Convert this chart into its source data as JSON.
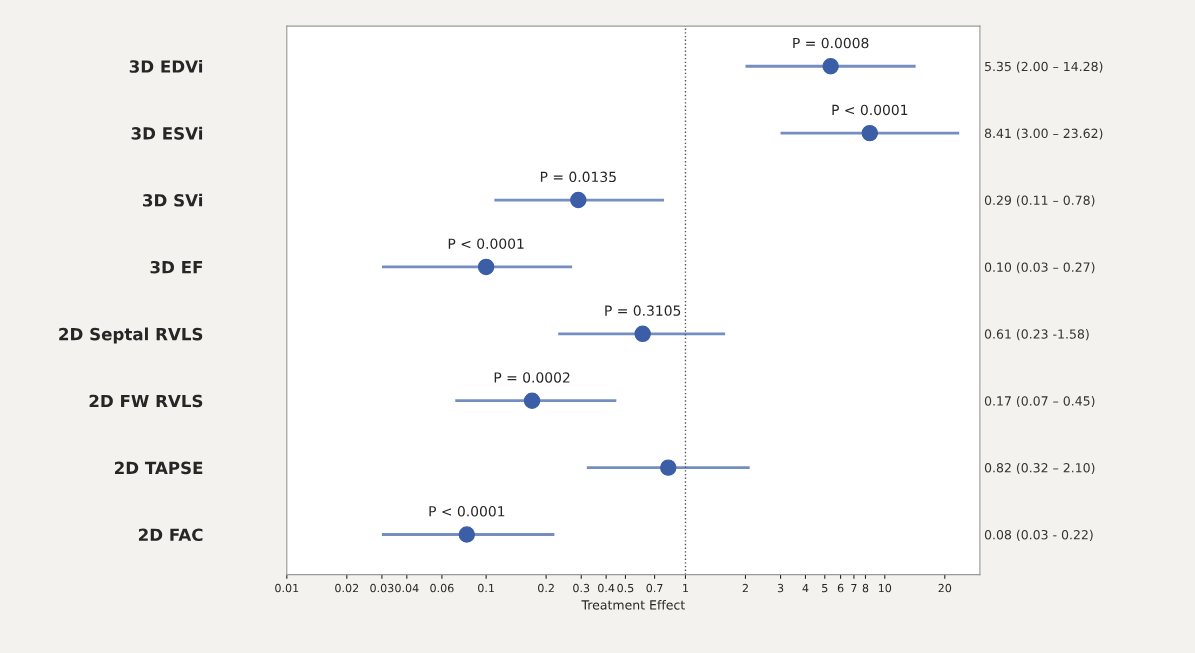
{
  "chart_data": {
    "type": "scatter",
    "orientation": "horizontal",
    "xlabel": "Treatment Effect",
    "categories": [
      "3D EDVi",
      "3D ESVi",
      "3D SVi",
      "3D EF",
      "2D Septal RVLS",
      "2D FW RVLS",
      "2D TAPSE",
      "2D FAC"
    ],
    "series": [
      {
        "color": "#3b5ea6",
        "values": [
          5.35,
          8.41,
          0.29,
          0.1,
          0.61,
          0.17,
          0.82,
          0.08
        ],
        "errors": [
          [
            2.0,
            14.28
          ],
          [
            3.0,
            23.62
          ],
          [
            0.11,
            0.78
          ],
          [
            0.03,
            0.27
          ],
          [
            0.23,
            1.58
          ],
          [
            0.07,
            0.45
          ],
          [
            0.32,
            2.1
          ],
          [
            0.03,
            0.22
          ]
        ]
      }
    ],
    "y2_categories": [
      "5.35 (2.00 – 14.28)",
      "8.41 (3.00 – 23.62)",
      "0.29 (0.11 – 0.78)",
      "0.10 (0.03 – 0.27)",
      "0.61 (0.23 -1.58)",
      "0.17 (0.07 – 0.45)",
      "0.82 (0.32 – 2.10)",
      "0.08 (0.03 - 0.22)"
    ],
    "log": "x",
    "xlim": [
      0.01,
      30
    ],
    "xticks": [
      0.01,
      0.02,
      0.03,
      0.04,
      0.06,
      0.1,
      0.2,
      0.3,
      0.4,
      0.5,
      0.7,
      1,
      2,
      3,
      4,
      5,
      6,
      7,
      8,
      10,
      20
    ],
    "marker": "circle",
    "grid": false,
    "legend": false,
    "ref_lines": [
      {
        "axis": "x",
        "value": 1,
        "line_style": "dotted",
        "color": "#555555"
      }
    ],
    "annotations": [
      {
        "text": "P = 0.0008",
        "x": 5.35,
        "y": "3D EDVi"
      },
      {
        "text": "P < 0.0001",
        "x": 8.41,
        "y": "3D ESVi"
      },
      {
        "text": "P = 0.0135",
        "x": 0.29,
        "y": "3D SVi"
      },
      {
        "text": "P < 0.0001",
        "x": 0.1,
        "y": "3D EF"
      },
      {
        "text": "P = 0.3105",
        "x": 0.61,
        "y": "2D Septal RVLS"
      },
      {
        "text": "P = 0.0002",
        "x": 0.17,
        "y": "2D FW RVLS"
      },
      {
        "text": "P < 0.0001",
        "x": 0.08,
        "y": "2D FAC"
      }
    ]
  }
}
